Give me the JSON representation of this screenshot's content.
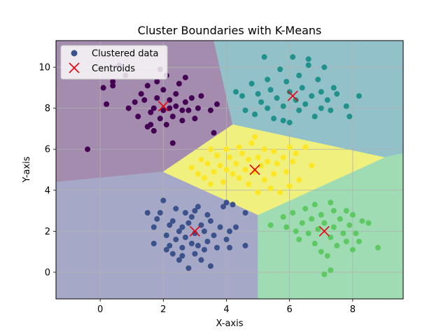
{
  "chart_data": {
    "type": "scatter",
    "title": "Cluster Boundaries with K-Means",
    "xlabel": "X-axis",
    "ylabel": "Y-axis",
    "xlim": [
      -1.4,
      9.6
    ],
    "ylim": [
      -1.3,
      11.3
    ],
    "xticks": [
      0,
      2,
      4,
      6,
      8
    ],
    "yticks": [
      0,
      2,
      4,
      6,
      8,
      10
    ],
    "grid": true,
    "legend": {
      "placement": "top-left",
      "entries": [
        "Clustered data",
        "Centroids"
      ]
    },
    "region_colors": [
      "#a38cae",
      "#a6a8c8",
      "#92c1c9",
      "#9fdcb4",
      "#f0f07e"
    ],
    "regions": [
      {
        "cluster": 0,
        "polygon": [
          [
            -1.4,
            4.4
          ],
          [
            2.0,
            4.9
          ],
          [
            4.2,
            7.2
          ],
          [
            3.6,
            11.3
          ],
          [
            -1.4,
            11.3
          ]
        ]
      },
      {
        "cluster": 1,
        "polygon": [
          [
            -1.4,
            -1.3
          ],
          [
            -1.4,
            4.4
          ],
          [
            2.0,
            4.9
          ],
          [
            5.0,
            2.8
          ],
          [
            5.0,
            -1.3
          ]
        ]
      },
      {
        "cluster": 2,
        "polygon": [
          [
            3.6,
            11.3
          ],
          [
            4.2,
            7.2
          ],
          [
            9.0,
            5.6
          ],
          [
            9.6,
            5.8
          ],
          [
            9.6,
            11.3
          ]
        ]
      },
      {
        "cluster": 3,
        "polygon": [
          [
            5.0,
            -1.3
          ],
          [
            5.0,
            2.8
          ],
          [
            9.0,
            5.6
          ],
          [
            9.6,
            5.8
          ],
          [
            9.6,
            -1.3
          ]
        ]
      },
      {
        "cluster": 4,
        "polygon": [
          [
            2.0,
            4.9
          ],
          [
            4.2,
            7.2
          ],
          [
            9.0,
            5.6
          ],
          [
            5.0,
            2.8
          ]
        ]
      }
    ],
    "series": [
      {
        "name": "Clustered data",
        "clusters": [
          {
            "color": "#440154",
            "points": [
              [
                -0.4,
                6.0
              ],
              [
                0.1,
                9.0
              ],
              [
                0.2,
                8.2
              ],
              [
                0.4,
                9.3
              ],
              [
                0.4,
                9.1
              ],
              [
                0.6,
                10.1
              ],
              [
                0.8,
                9.6
              ],
              [
                0.9,
                8.0
              ],
              [
                1.1,
                8.3
              ],
              [
                1.2,
                7.6
              ],
              [
                1.3,
                8.7
              ],
              [
                1.4,
                8.4
              ],
              [
                1.5,
                9.1
              ],
              [
                1.6,
                7.8
              ],
              [
                1.6,
                7.2
              ],
              [
                1.7,
                8.0
              ],
              [
                1.7,
                6.9
              ],
              [
                1.8,
                9.3
              ],
              [
                1.8,
                8.5
              ],
              [
                1.9,
                7.5
              ],
              [
                2.0,
                8.9
              ],
              [
                2.0,
                7.9
              ],
              [
                2.1,
                9.6
              ],
              [
                2.1,
                7.2
              ],
              [
                2.2,
                8.4
              ],
              [
                2.2,
                8.0
              ],
              [
                2.3,
                7.6
              ],
              [
                2.3,
                6.3
              ],
              [
                2.4,
                8.7
              ],
              [
                2.4,
                8.1
              ],
              [
                2.5,
                9.2
              ],
              [
                2.6,
                7.9
              ],
              [
                2.6,
                7.4
              ],
              [
                2.7,
                8.3
              ],
              [
                2.7,
                9.5
              ],
              [
                2.8,
                7.9
              ],
              [
                2.9,
                8.5
              ],
              [
                3.0,
                7.5
              ],
              [
                3.1,
                8.0
              ],
              [
                3.2,
                8.6
              ],
              [
                3.5,
                7.9
              ],
              [
                3.6,
                6.8
              ],
              [
                3.7,
                8.2
              ],
              [
                1.5,
                7.1
              ],
              [
                1.9,
                9.9
              ]
            ]
          },
          {
            "color": "#3b528b",
            "points": [
              [
                1.5,
                2.9
              ],
              [
                1.7,
                2.2
              ],
              [
                1.7,
                1.4
              ],
              [
                1.8,
                2.6
              ],
              [
                1.9,
                2.9
              ],
              [
                2.0,
                3.5
              ],
              [
                2.1,
                1.8
              ],
              [
                2.1,
                1.1
              ],
              [
                2.2,
                2.3
              ],
              [
                2.2,
                1.3
              ],
              [
                2.3,
                2.5
              ],
              [
                2.3,
                0.9
              ],
              [
                2.4,
                1.6
              ],
              [
                2.4,
                3.1
              ],
              [
                2.5,
                2.0
              ],
              [
                2.5,
                0.6
              ],
              [
                2.6,
                2.2
              ],
              [
                2.6,
                1.2
              ],
              [
                2.7,
                2.9
              ],
              [
                2.7,
                1.7
              ],
              [
                2.8,
                0.2
              ],
              [
                2.8,
                2.4
              ],
              [
                2.9,
                1.4
              ],
              [
                2.9,
                2.7
              ],
              [
                3.0,
                1.9
              ],
              [
                3.0,
                0.9
              ],
              [
                3.1,
                3.2
              ],
              [
                3.1,
                1.3
              ],
              [
                3.2,
                2.3
              ],
              [
                3.2,
                0.6
              ],
              [
                3.3,
                2.0
              ],
              [
                3.3,
                1.1
              ],
              [
                3.4,
                2.8
              ],
              [
                3.4,
                1.5
              ],
              [
                3.5,
                2.5
              ],
              [
                3.5,
                0.3
              ],
              [
                3.6,
                1.8
              ],
              [
                3.7,
                1.2
              ],
              [
                3.8,
                2.2
              ],
              [
                3.9,
                3.2
              ],
              [
                4.0,
                1.6
              ],
              [
                4.0,
                3.4
              ],
              [
                4.1,
                2.0
              ],
              [
                4.1,
                1.2
              ],
              [
                4.2,
                3.3
              ],
              [
                4.3,
                2.2
              ],
              [
                4.6,
                2.9
              ],
              [
                4.6,
                1.3
              ],
              [
                2.6,
                0.8
              ],
              [
                3.0,
                3.0
              ]
            ]
          },
          {
            "color": "#21918c",
            "points": [
              [
                4.3,
                8.8
              ],
              [
                4.5,
                8.6
              ],
              [
                4.6,
                7.9
              ],
              [
                4.8,
                9.2
              ],
              [
                4.9,
                7.7
              ],
              [
                5.0,
                8.7
              ],
              [
                5.1,
                8.3
              ],
              [
                5.2,
                10.5
              ],
              [
                5.3,
                9.4
              ],
              [
                5.3,
                8.0
              ],
              [
                5.4,
                8.9
              ],
              [
                5.5,
                7.5
              ],
              [
                5.6,
                8.5
              ],
              [
                5.7,
                9.9
              ],
              [
                5.8,
                8.1
              ],
              [
                5.9,
                9.3
              ],
              [
                6.0,
                8.8
              ],
              [
                6.0,
                7.3
              ],
              [
                6.1,
                10.5
              ],
              [
                6.2,
                8.4
              ],
              [
                6.3,
                9.6
              ],
              [
                6.3,
                7.9
              ],
              [
                6.4,
                9.0
              ],
              [
                6.5,
                8.2
              ],
              [
                6.6,
                10.1
              ],
              [
                6.7,
                8.6
              ],
              [
                6.8,
                7.6
              ],
              [
                6.9,
                9.4
              ],
              [
                7.0,
                8.8
              ],
              [
                7.0,
                8.0
              ],
              [
                7.1,
                10.0
              ],
              [
                7.2,
                8.4
              ],
              [
                7.3,
                7.9
              ],
              [
                7.4,
                9.0
              ],
              [
                7.5,
                8.7
              ],
              [
                7.8,
                8.1
              ],
              [
                7.9,
                7.6
              ],
              [
                8.2,
                8.6
              ],
              [
                6.6,
                10.4
              ],
              [
                5.8,
                7.4
              ]
            ]
          },
          {
            "color": "#5ec962",
            "points": [
              [
                5.4,
                2.3
              ],
              [
                5.8,
                2.7
              ],
              [
                5.9,
                2.2
              ],
              [
                6.1,
                2.9
              ],
              [
                6.3,
                1.6
              ],
              [
                6.4,
                2.4
              ],
              [
                6.5,
                3.1
              ],
              [
                6.6,
                1.9
              ],
              [
                6.7,
                2.6
              ],
              [
                6.8,
                1.4
              ],
              [
                6.8,
                3.3
              ],
              [
                6.9,
                2.1
              ],
              [
                7.0,
                2.8
              ],
              [
                7.0,
                1.0
              ],
              [
                7.1,
                2.4
              ],
              [
                7.2,
                0.8
              ],
              [
                7.3,
                1.7
              ],
              [
                7.3,
                3.4
              ],
              [
                7.4,
                2.2
              ],
              [
                7.4,
                3.0
              ],
              [
                7.5,
                1.3
              ],
              [
                7.6,
                2.6
              ],
              [
                7.7,
                1.9
              ],
              [
                7.8,
                3.0
              ],
              [
                7.8,
                1.5
              ],
              [
                7.9,
                2.3
              ],
              [
                8.0,
                2.8
              ],
              [
                8.0,
                1.1
              ],
              [
                8.1,
                1.9
              ],
              [
                8.3,
                2.5
              ],
              [
                8.5,
                2.4
              ],
              [
                8.8,
                1.2
              ],
              [
                7.3,
                0.1
              ],
              [
                7.1,
                -0.1
              ],
              [
                8.2,
                1.5
              ],
              [
                6.2,
                2.0
              ]
            ]
          },
          {
            "color": "#fde725",
            "points": [
              [
                2.9,
                5.1
              ],
              [
                3.1,
                4.8
              ],
              [
                3.2,
                5.5
              ],
              [
                3.3,
                4.6
              ],
              [
                3.4,
                5.3
              ],
              [
                3.5,
                6.0
              ],
              [
                3.6,
                4.9
              ],
              [
                3.7,
                5.7
              ],
              [
                3.8,
                5.2
              ],
              [
                3.9,
                4.4
              ],
              [
                4.0,
                6.0
              ],
              [
                4.0,
                5.0
              ],
              [
                4.1,
                5.6
              ],
              [
                4.2,
                4.8
              ],
              [
                4.3,
                5.3
              ],
              [
                4.4,
                6.1
              ],
              [
                4.4,
                4.6
              ],
              [
                4.5,
                5.8
              ],
              [
                4.6,
                5.0
              ],
              [
                4.7,
                5.5
              ],
              [
                4.7,
                4.3
              ],
              [
                4.8,
                6.3
              ],
              [
                4.9,
                4.9
              ],
              [
                5.0,
                5.6
              ],
              [
                5.0,
                3.9
              ],
              [
                5.1,
                5.2
              ],
              [
                5.2,
                6.0
              ],
              [
                5.2,
                4.5
              ],
              [
                5.3,
                5.4
              ],
              [
                5.4,
                4.1
              ],
              [
                5.5,
                5.9
              ],
              [
                5.5,
                4.8
              ],
              [
                5.6,
                5.3
              ],
              [
                5.7,
                3.9
              ],
              [
                5.8,
                5.6
              ],
              [
                5.9,
                4.9
              ],
              [
                6.0,
                6.1
              ],
              [
                6.0,
                4.2
              ],
              [
                6.1,
                5.4
              ],
              [
                6.2,
                5.8
              ],
              [
                6.3,
                4.5
              ],
              [
                6.5,
                6.1
              ],
              [
                6.7,
                5.2
              ],
              [
                3.5,
                4.3
              ],
              [
                4.9,
                6.6
              ]
            ]
          }
        ]
      }
    ],
    "centroids": {
      "name": "Centroids",
      "color": "#e8000b",
      "points": [
        [
          2.0,
          8.1
        ],
        [
          3.0,
          2.0
        ],
        [
          6.1,
          8.6
        ],
        [
          7.1,
          2.0
        ],
        [
          4.9,
          5.0
        ]
      ]
    }
  }
}
